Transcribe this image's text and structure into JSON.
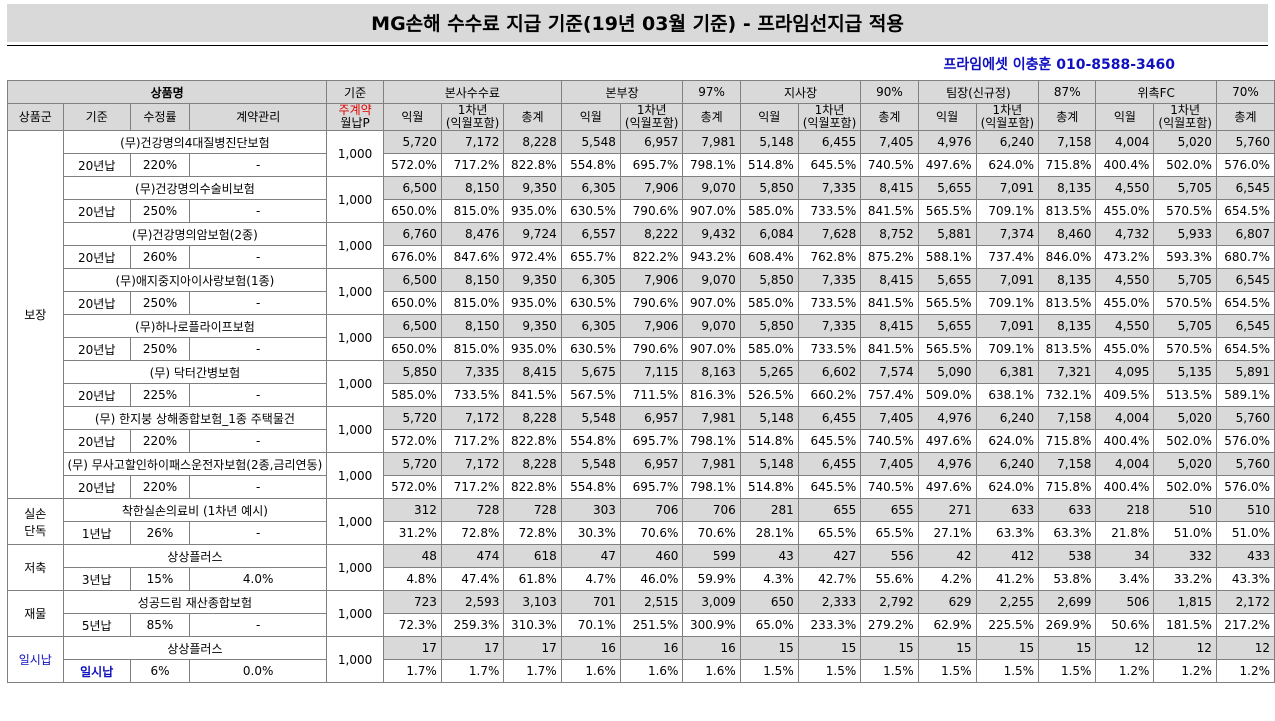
{
  "title": "MG손해 수수료 지급 기준(19년 03월 기준) - 프라임선지급 적용",
  "contact": "프라임에셋 이충훈 010-8588-3460",
  "header1": {
    "product": "상품명",
    "base": "기준",
    "hq": "본사수수료",
    "division": "본부장",
    "division_pct": "97%",
    "branch": "지사장",
    "branch_pct": "90%",
    "team": "팀장(신규정)",
    "team_pct": "87%",
    "fc": "위촉FC",
    "fc_pct": "70%"
  },
  "header2": {
    "group": "상품군",
    "standard": "기준",
    "rate": "수정률",
    "contract": "계약관리",
    "premium_line1": "주계약",
    "premium_line2": "월납P",
    "month": "익월",
    "year1_line1": "1차년",
    "year1_line2": "(익월포함)",
    "total": "총계"
  },
  "groups": [
    {
      "name": "보장",
      "products": [
        {
          "name": "(무)건강명의4대질병진단보험",
          "std": "20년납",
          "rate": "220%",
          "mgmt": "-",
          "premium": "1,000",
          "vals": [
            "5,720",
            "7,172",
            "8,228",
            "5,548",
            "6,957",
            "7,981",
            "5,148",
            "6,455",
            "7,405",
            "4,976",
            "6,240",
            "7,158",
            "4,004",
            "5,020",
            "5,760"
          ],
          "pcts": [
            "572.0%",
            "717.2%",
            "822.8%",
            "554.8%",
            "695.7%",
            "798.1%",
            "514.8%",
            "645.5%",
            "740.5%",
            "497.6%",
            "624.0%",
            "715.8%",
            "400.4%",
            "502.0%",
            "576.0%"
          ]
        },
        {
          "name": "(무)건강명의수술비보험",
          "std": "20년납",
          "rate": "250%",
          "mgmt": "-",
          "premium": "1,000",
          "vals": [
            "6,500",
            "8,150",
            "9,350",
            "6,305",
            "7,906",
            "9,070",
            "5,850",
            "7,335",
            "8,415",
            "5,655",
            "7,091",
            "8,135",
            "4,550",
            "5,705",
            "6,545"
          ],
          "pcts": [
            "650.0%",
            "815.0%",
            "935.0%",
            "630.5%",
            "790.6%",
            "907.0%",
            "585.0%",
            "733.5%",
            "841.5%",
            "565.5%",
            "709.1%",
            "813.5%",
            "455.0%",
            "570.5%",
            "654.5%"
          ]
        },
        {
          "name": "(무)건강명의암보험(2종)",
          "std": "20년납",
          "rate": "260%",
          "mgmt": "-",
          "premium": "1,000",
          "vals": [
            "6,760",
            "8,476",
            "9,724",
            "6,557",
            "8,222",
            "9,432",
            "6,084",
            "7,628",
            "8,752",
            "5,881",
            "7,374",
            "8,460",
            "4,732",
            "5,933",
            "6,807"
          ],
          "pcts": [
            "676.0%",
            "847.6%",
            "972.4%",
            "655.7%",
            "822.2%",
            "943.2%",
            "608.4%",
            "762.8%",
            "875.2%",
            "588.1%",
            "737.4%",
            "846.0%",
            "473.2%",
            "593.3%",
            "680.7%"
          ]
        },
        {
          "name": "(무)애지중지아이사랑보험(1종)",
          "std": "20년납",
          "rate": "250%",
          "mgmt": "-",
          "premium": "1,000",
          "vals": [
            "6,500",
            "8,150",
            "9,350",
            "6,305",
            "7,906",
            "9,070",
            "5,850",
            "7,335",
            "8,415",
            "5,655",
            "7,091",
            "8,135",
            "4,550",
            "5,705",
            "6,545"
          ],
          "pcts": [
            "650.0%",
            "815.0%",
            "935.0%",
            "630.5%",
            "790.6%",
            "907.0%",
            "585.0%",
            "733.5%",
            "841.5%",
            "565.5%",
            "709.1%",
            "813.5%",
            "455.0%",
            "570.5%",
            "654.5%"
          ]
        },
        {
          "name": "(무)하나로플라이프보험",
          "std": "20년납",
          "rate": "250%",
          "mgmt": "-",
          "premium": "1,000",
          "vals": [
            "6,500",
            "8,150",
            "9,350",
            "6,305",
            "7,906",
            "9,070",
            "5,850",
            "7,335",
            "8,415",
            "5,655",
            "7,091",
            "8,135",
            "4,550",
            "5,705",
            "6,545"
          ],
          "pcts": [
            "650.0%",
            "815.0%",
            "935.0%",
            "630.5%",
            "790.6%",
            "907.0%",
            "585.0%",
            "733.5%",
            "841.5%",
            "565.5%",
            "709.1%",
            "813.5%",
            "455.0%",
            "570.5%",
            "654.5%"
          ]
        },
        {
          "name": "(무) 닥터간병보험",
          "std": "20년납",
          "rate": "225%",
          "mgmt": "-",
          "premium": "1,000",
          "vals": [
            "5,850",
            "7,335",
            "8,415",
            "5,675",
            "7,115",
            "8,163",
            "5,265",
            "6,602",
            "7,574",
            "5,090",
            "6,381",
            "7,321",
            "4,095",
            "5,135",
            "5,891"
          ],
          "pcts": [
            "585.0%",
            "733.5%",
            "841.5%",
            "567.5%",
            "711.5%",
            "816.3%",
            "526.5%",
            "660.2%",
            "757.4%",
            "509.0%",
            "638.1%",
            "732.1%",
            "409.5%",
            "513.5%",
            "589.1%"
          ]
        },
        {
          "name": "(무) 한지붕 상해종합보험_1종 주택물건",
          "std": "20년납",
          "rate": "220%",
          "mgmt": "-",
          "premium": "1,000",
          "vals": [
            "5,720",
            "7,172",
            "8,228",
            "5,548",
            "6,957",
            "7,981",
            "5,148",
            "6,455",
            "7,405",
            "4,976",
            "6,240",
            "7,158",
            "4,004",
            "5,020",
            "5,760"
          ],
          "pcts": [
            "572.0%",
            "717.2%",
            "822.8%",
            "554.8%",
            "695.7%",
            "798.1%",
            "514.8%",
            "645.5%",
            "740.5%",
            "497.6%",
            "624.0%",
            "715.8%",
            "400.4%",
            "502.0%",
            "576.0%"
          ]
        },
        {
          "name": "(무) 무사고할인하이패스운전자보험(2종,금리연동)",
          "std": "20년납",
          "rate": "220%",
          "mgmt": "-",
          "premium": "1,000",
          "vals": [
            "5,720",
            "7,172",
            "8,228",
            "5,548",
            "6,957",
            "7,981",
            "5,148",
            "6,455",
            "7,405",
            "4,976",
            "6,240",
            "7,158",
            "4,004",
            "5,020",
            "5,760"
          ],
          "pcts": [
            "572.0%",
            "717.2%",
            "822.8%",
            "554.8%",
            "695.7%",
            "798.1%",
            "514.8%",
            "645.5%",
            "740.5%",
            "497.6%",
            "624.0%",
            "715.8%",
            "400.4%",
            "502.0%",
            "576.0%"
          ]
        }
      ]
    },
    {
      "name": "실손\n단독",
      "products": [
        {
          "name": "착한실손의료비 (1차년 예시)",
          "std": "1년납",
          "rate": "26%",
          "mgmt": "-",
          "premium": "1,000",
          "vals": [
            "312",
            "728",
            "728",
            "303",
            "706",
            "706",
            "281",
            "655",
            "655",
            "271",
            "633",
            "633",
            "218",
            "510",
            "510"
          ],
          "pcts": [
            "31.2%",
            "72.8%",
            "72.8%",
            "30.3%",
            "70.6%",
            "70.6%",
            "28.1%",
            "65.5%",
            "65.5%",
            "27.1%",
            "63.3%",
            "63.3%",
            "21.8%",
            "51.0%",
            "51.0%"
          ]
        }
      ]
    },
    {
      "name": "저축",
      "products": [
        {
          "name": "상상플러스",
          "std": "3년납",
          "rate": "15%",
          "mgmt": "4.0%",
          "premium": "1,000",
          "vals": [
            "48",
            "474",
            "618",
            "47",
            "460",
            "599",
            "43",
            "427",
            "556",
            "42",
            "412",
            "538",
            "34",
            "332",
            "433"
          ],
          "pcts": [
            "4.8%",
            "47.4%",
            "61.8%",
            "4.7%",
            "46.0%",
            "59.9%",
            "4.3%",
            "42.7%",
            "55.6%",
            "4.2%",
            "41.2%",
            "53.8%",
            "3.4%",
            "33.2%",
            "43.3%"
          ]
        }
      ]
    },
    {
      "name": "재물",
      "products": [
        {
          "name": "성공드림 재산종합보험",
          "std": "5년납",
          "rate": "85%",
          "mgmt": "-",
          "premium": "1,000",
          "vals": [
            "723",
            "2,593",
            "3,103",
            "701",
            "2,515",
            "3,009",
            "650",
            "2,333",
            "2,792",
            "629",
            "2,255",
            "2,699",
            "506",
            "1,815",
            "2,172"
          ],
          "pcts": [
            "72.3%",
            "259.3%",
            "310.3%",
            "70.1%",
            "251.5%",
            "300.9%",
            "65.0%",
            "233.3%",
            "279.2%",
            "62.9%",
            "225.5%",
            "269.9%",
            "50.6%",
            "181.5%",
            "217.2%"
          ]
        }
      ]
    },
    {
      "name": "일시납",
      "products": [
        {
          "name": "상상플러스",
          "std": "일시납",
          "rate": "6%",
          "mgmt": "0.0%",
          "premium": "1,000",
          "vals": [
            "17",
            "17",
            "17",
            "16",
            "16",
            "16",
            "15",
            "15",
            "15",
            "15",
            "15",
            "15",
            "12",
            "12",
            "12"
          ],
          "pcts": [
            "1.7%",
            "1.7%",
            "1.7%",
            "1.6%",
            "1.6%",
            "1.6%",
            "1.5%",
            "1.5%",
            "1.5%",
            "1.5%",
            "1.5%",
            "1.5%",
            "1.2%",
            "1.2%",
            "1.2%"
          ]
        }
      ]
    }
  ],
  "colors": {
    "header_bg": "#d9d9d9",
    "blue_text": "#1010c0",
    "red_text": "#e00000"
  }
}
